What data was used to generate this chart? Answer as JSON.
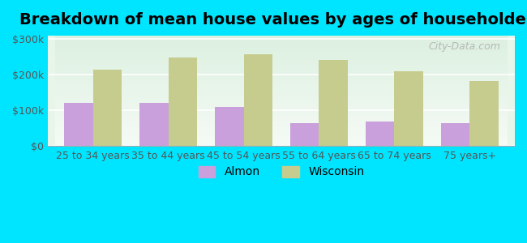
{
  "title": "Breakdown of mean house values by ages of householders",
  "categories": [
    "25 to 34 years",
    "35 to 44 years",
    "45 to 54 years",
    "55 to 64 years",
    "65 to 74 years",
    "75 years+"
  ],
  "almon_values": [
    120000,
    120000,
    110000,
    65000,
    68000,
    63000
  ],
  "wisconsin_values": [
    215000,
    248000,
    258000,
    242000,
    210000,
    183000
  ],
  "almon_color": "#c9a0dc",
  "wisconsin_color": "#c5cc8e",
  "background_outer": "#00e5ff",
  "background_inner_top": "#e8f5e9",
  "background_inner_bottom": "#ffffff",
  "yticks": [
    0,
    100000,
    200000,
    300000
  ],
  "ytick_labels": [
    "$0",
    "$100k",
    "$200k",
    "$300k"
  ],
  "ylim": [
    0,
    310000
  ],
  "legend_almon": "Almon",
  "legend_wisconsin": "Wisconsin",
  "bar_width": 0.38,
  "title_fontsize": 14,
  "tick_fontsize": 9,
  "legend_fontsize": 10,
  "watermark_text": "City-Data.com"
}
